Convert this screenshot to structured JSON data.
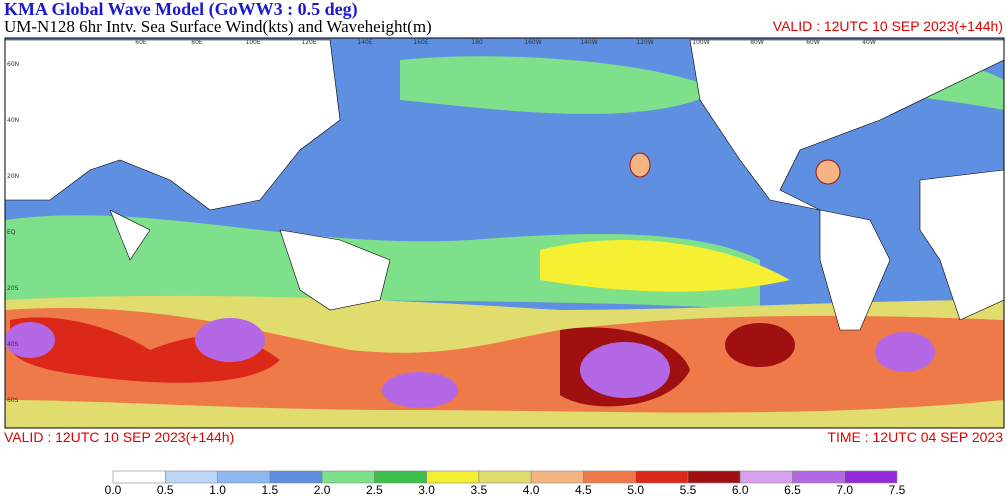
{
  "header": {
    "title": "KMA  Global Wave Model (GoWW3 : 0.5 deg)",
    "subtitle": "UM-N128  6hr Intv. Sea Surface Wind(kts) and Waveheight(m)",
    "valid_top": "VALID : 12UTC 10 SEP 2023(+144h)"
  },
  "map": {
    "lon_labels": [
      "60E",
      "80E",
      "100E",
      "120E",
      "140E",
      "160E",
      "180",
      "160W",
      "140W",
      "120W",
      "100W",
      "80W",
      "60W",
      "40W"
    ],
    "lat_labels": [
      "60N",
      "40N",
      "20N",
      "EQ",
      "20S",
      "40S",
      "60S"
    ]
  },
  "footer": {
    "valid": "VALID : 12UTC 10 SEP 2023(+144h)",
    "time": "TIME : 12UTC 04 SEP 2023"
  },
  "colorbar": {
    "labels": [
      "0.0",
      "0.5",
      "1.0",
      "1.5",
      "2.0",
      "2.5",
      "3.0",
      "3.5",
      "4.0",
      "4.5",
      "5.0",
      "5.5",
      "6.0",
      "6.5",
      "7.0",
      "7.5"
    ],
    "colors": [
      "#ffffff",
      "#bcd6f5",
      "#8fb8f0",
      "#5f8fe0",
      "#7ee08a",
      "#3cc04a",
      "#f5f032",
      "#e0dc6e",
      "#f5b482",
      "#ee7a4a",
      "#dc2818",
      "#a01010",
      "#d8a0f0",
      "#b468e6",
      "#9628dc"
    ]
  }
}
